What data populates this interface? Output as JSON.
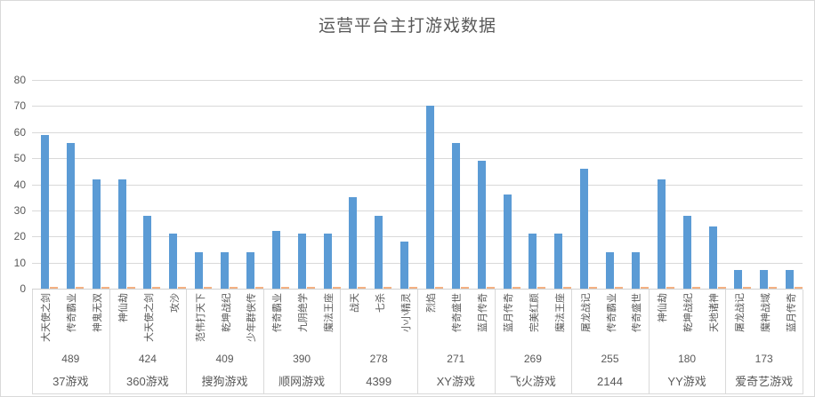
{
  "chart_data": {
    "type": "bar",
    "title": "运营平台主打游戏数据",
    "xlabel": "",
    "ylabel": "",
    "ylim": [
      0,
      80
    ],
    "yticks": [
      0,
      10,
      20,
      30,
      40,
      50,
      60,
      70,
      80
    ],
    "grid": true,
    "legend": "none",
    "colors": {
      "primary_bar": "#5b9bd5",
      "secondary_bar": "#f4b183",
      "text": "#595959",
      "gridline": "#d9d9d9"
    },
    "secondary_series_value_per_bar": 0.5,
    "groups": [
      {
        "platform": "37游戏",
        "total": "489",
        "games": [
          {
            "name": "大天使之剑",
            "value": 59
          },
          {
            "name": "传奇霸业",
            "value": 56
          },
          {
            "name": "神鬼无双",
            "value": 42
          }
        ]
      },
      {
        "platform": "360游戏",
        "total": "424",
        "games": [
          {
            "name": "神仙劫",
            "value": 42
          },
          {
            "name": "大天使之剑",
            "value": 28
          },
          {
            "name": "攻沙",
            "value": 21
          }
        ]
      },
      {
        "platform": "搜狗游戏",
        "total": "409",
        "games": [
          {
            "name": "范伟打天下",
            "value": 14
          },
          {
            "name": "乾坤战纪",
            "value": 14
          },
          {
            "name": "少年群侠传",
            "value": 14
          }
        ]
      },
      {
        "platform": "顺网游戏",
        "total": "390",
        "games": [
          {
            "name": "传奇霸业",
            "value": 22
          },
          {
            "name": "九阴绝学",
            "value": 21
          },
          {
            "name": "魔法王座",
            "value": 21
          }
        ]
      },
      {
        "platform": "4399",
        "total": "278",
        "games": [
          {
            "name": "战天",
            "value": 35
          },
          {
            "name": "七杀",
            "value": 28
          },
          {
            "name": "小小精灵",
            "value": 18
          }
        ]
      },
      {
        "platform": "XY游戏",
        "total": "271",
        "games": [
          {
            "name": "烈焰",
            "value": 70
          },
          {
            "name": "传奇盛世",
            "value": 56
          },
          {
            "name": "蓝月传奇",
            "value": 49
          }
        ]
      },
      {
        "platform": "飞火游戏",
        "total": "269",
        "games": [
          {
            "name": "蓝月传奇",
            "value": 36
          },
          {
            "name": "完美红颜",
            "value": 21
          },
          {
            "name": "魔法王座",
            "value": 21
          }
        ]
      },
      {
        "platform": "2144",
        "total": "255",
        "games": [
          {
            "name": "屠龙战记",
            "value": 46
          },
          {
            "name": "传奇霸业",
            "value": 14
          },
          {
            "name": "传奇盛世",
            "value": 14
          }
        ]
      },
      {
        "platform": "YY游戏",
        "total": "180",
        "games": [
          {
            "name": "神仙劫",
            "value": 42
          },
          {
            "name": "乾坤战纪",
            "value": 28
          },
          {
            "name": "天地诸神",
            "value": 24
          }
        ]
      },
      {
        "platform": "爱奇艺游戏",
        "total": "173",
        "games": [
          {
            "name": "屠龙战记",
            "value": 7
          },
          {
            "name": "魔神战域",
            "value": 7
          },
          {
            "name": "蓝月传奇",
            "value": 7
          }
        ]
      }
    ]
  }
}
